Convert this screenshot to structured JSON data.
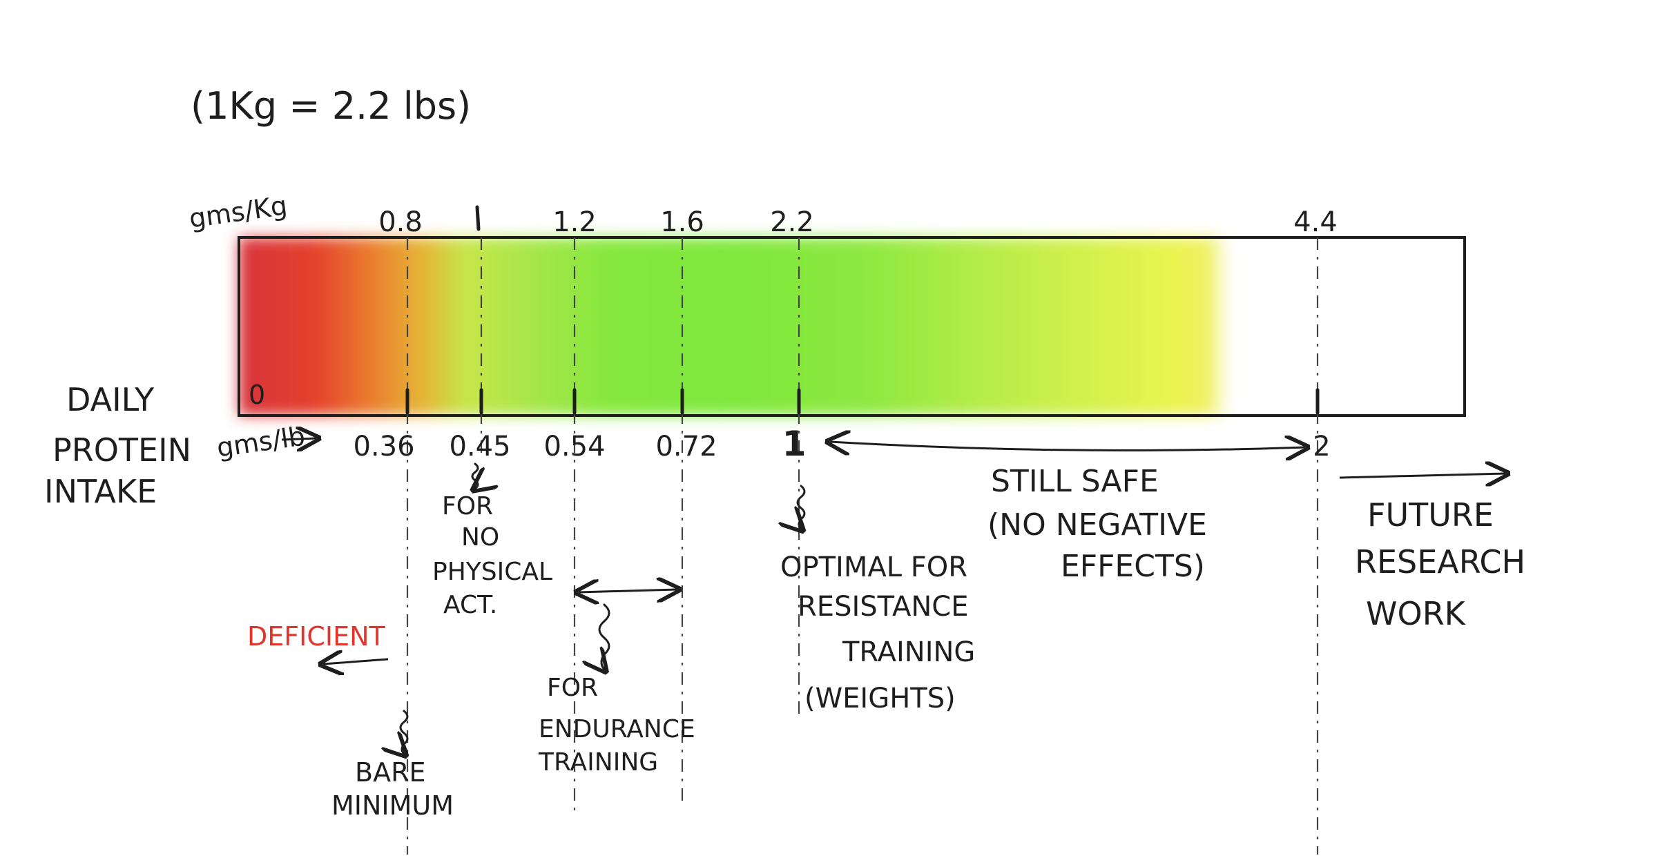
{
  "conversion_note": "(1Kg = 2.2 lbs)",
  "left_label": [
    "DAILY",
    "PROTEIN",
    "INTAKE"
  ],
  "top_unit": "gms/Kg",
  "bottom_unit": "gms/lb",
  "scale_zero": "0",
  "top_ticks": [
    "0.8",
    "1",
    "1.2",
    "1.6",
    "2.2",
    "4.4"
  ],
  "bottom_ticks": [
    "0.36",
    "0.45",
    "0.54",
    "0.72",
    "1",
    "2"
  ],
  "colors": {
    "deficient_red": "#e0352b",
    "orange": "#e8862d",
    "yellow": "#e6f24c",
    "green": "#7ee63c",
    "outline": "#1e1e1e"
  },
  "annotations": {
    "deficient": "DEFICIENT",
    "bare_minimum": [
      "BARE",
      "MINIMUM"
    ],
    "no_physical": [
      "FOR",
      "NO",
      "PHYSICAL",
      "ACT."
    ],
    "endurance": [
      "FOR",
      "ENDURANCE",
      "TRAINING"
    ],
    "resistance": [
      "OPTIMAL FOR",
      "RESISTANCE",
      "TRAINING",
      "(WEIGHTS)"
    ],
    "still_safe": [
      "STILL SAFE",
      "(NO NEGATIVE",
      "EFFECTS)"
    ],
    "future": [
      "FUTURE",
      "RESEARCH",
      "WORK"
    ]
  }
}
